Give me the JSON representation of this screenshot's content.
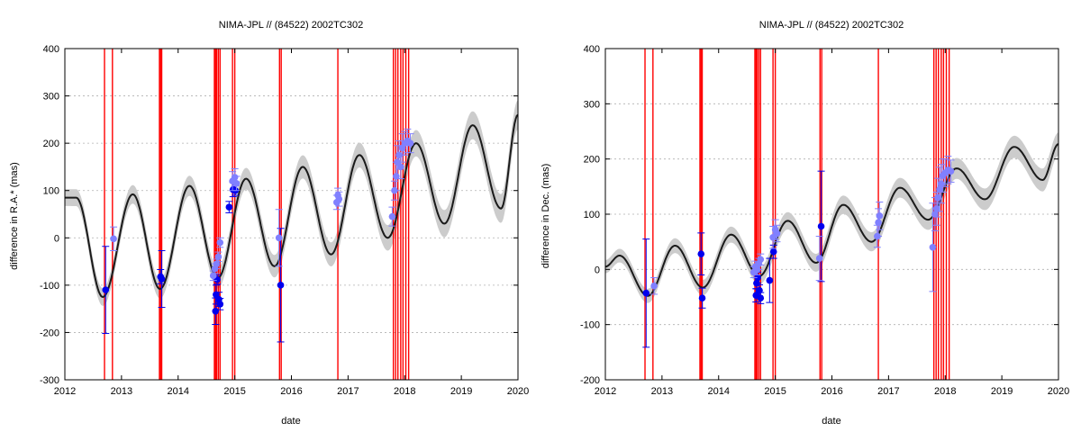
{
  "chart_data": [
    {
      "type": "line",
      "title": "NIMA-JPL // (84522) 2002TC302",
      "xlabel": "date",
      "ylabel": "difference in R.A.* (mas)",
      "xlim": [
        2012,
        2020
      ],
      "ylim": [
        -300,
        400
      ],
      "xticks": [
        2012,
        2013,
        2014,
        2015,
        2016,
        2017,
        2018,
        2019,
        2020
      ],
      "yticks": [
        -300,
        -200,
        -100,
        0,
        100,
        200,
        300,
        400
      ],
      "grid": "horizontal-dotted",
      "colors": {
        "curve": "#1a1a1a",
        "band": "#cccccc",
        "lines": "#ff0000",
        "points_dark": "#0000ee",
        "points_light": "#8080ff"
      },
      "model": {
        "amplitude": 105,
        "period": 1.0,
        "trend": [
          [
            2012,
            -10
          ],
          [
            2015,
            15
          ],
          [
            2018,
            100
          ],
          [
            2020,
            160
          ]
        ],
        "band": 22,
        "extremes": [
          [
            2012.2,
            85
          ],
          [
            2012.67,
            -125
          ],
          [
            2013.2,
            92
          ],
          [
            2013.68,
            -108
          ],
          [
            2014.2,
            110
          ],
          [
            2014.7,
            -85
          ],
          [
            2015.2,
            125
          ],
          [
            2015.7,
            -60
          ],
          [
            2016.2,
            150
          ],
          [
            2016.7,
            -35
          ],
          [
            2017.2,
            175
          ],
          [
            2017.7,
            0
          ],
          [
            2018.2,
            200
          ],
          [
            2018.7,
            30
          ],
          [
            2019.2,
            238
          ],
          [
            2019.7,
            62
          ],
          [
            2020.0,
            260
          ]
        ]
      },
      "vlines": [
        2012.7,
        2012.84,
        2013.67,
        2013.69,
        2013.71,
        2014.64,
        2014.66,
        2014.68,
        2014.71,
        2014.74,
        2014.96,
        2015.0,
        2015.79,
        2015.82,
        2016.82,
        2017.8,
        2017.84,
        2017.88,
        2017.93,
        2017.97,
        2018.02,
        2018.07
      ],
      "series": [
        {
          "points": [
            [
              2012.72,
              -110,
              92
            ],
            [
              2013.69,
              -82,
              15
            ],
            [
              2013.71,
              -87,
              60
            ],
            [
              2014.66,
              -155,
              28
            ],
            [
              2014.67,
              -120,
              20
            ],
            [
              2014.69,
              -88,
              10
            ],
            [
              2014.72,
              -130,
              15
            ],
            [
              2014.74,
              -140,
              12
            ],
            [
              2014.9,
              65,
              12
            ],
            [
              2014.97,
              102,
              15
            ],
            [
              2015.01,
              100,
              10
            ],
            [
              2015.81,
              -100,
              120
            ]
          ]
        },
        {
          "points": [
            [
              2012.86,
              -2,
              25
            ],
            [
              2014.62,
              -80,
              10
            ],
            [
              2014.65,
              -65,
              10
            ],
            [
              2014.68,
              -55,
              10
            ],
            [
              2014.71,
              -40,
              10
            ],
            [
              2014.74,
              -10,
              10
            ],
            [
              2014.96,
              120,
              20
            ],
            [
              2015.0,
              128,
              18
            ],
            [
              2015.03,
              115,
              15
            ],
            [
              2015.78,
              0,
              60
            ],
            [
              2016.8,
              75,
              15
            ],
            [
              2016.82,
              90,
              15
            ],
            [
              2016.84,
              82,
              15
            ],
            [
              2017.78,
              45,
              20
            ],
            [
              2017.82,
              100,
              20
            ],
            [
              2017.85,
              130,
              30
            ],
            [
              2017.87,
              160,
              35
            ],
            [
              2017.9,
              175,
              30
            ],
            [
              2017.93,
              150,
              25
            ],
            [
              2017.96,
              190,
              30
            ],
            [
              2018.0,
              200,
              25
            ],
            [
              2018.05,
              205,
              25
            ],
            [
              2018.1,
              200,
              20
            ]
          ]
        }
      ]
    },
    {
      "type": "line",
      "title": "NIMA-JPL // (84522) 2002TC302",
      "xlabel": "date",
      "ylabel": "difference in Dec. (mas)",
      "xlim": [
        2012,
        2020
      ],
      "ylim": [
        -200,
        400
      ],
      "xticks": [
        2012,
        2013,
        2014,
        2015,
        2016,
        2017,
        2018,
        2019,
        2020
      ],
      "yticks": [
        -200,
        -100,
        0,
        100,
        200,
        300,
        400
      ],
      "grid": "horizontal-dotted",
      "colors": {
        "curve": "#1a1a1a",
        "band": "#cccccc",
        "lines": "#ff0000",
        "points_dark": "#0000ee",
        "points_light": "#8080ff"
      },
      "model": {
        "amplitude": 40,
        "period": 1.0,
        "trend": [
          [
            2012,
            -10
          ],
          [
            2015,
            40
          ],
          [
            2018,
            150
          ],
          [
            2020,
            190
          ]
        ],
        "band": 15,
        "extremes": [
          [
            2012,
            5
          ],
          [
            2012.25,
            25
          ],
          [
            2012.75,
            -48
          ],
          [
            2013.23,
            43
          ],
          [
            2013.72,
            -33
          ],
          [
            2014.22,
            63
          ],
          [
            2014.72,
            -12
          ],
          [
            2015.22,
            88
          ],
          [
            2015.72,
            12
          ],
          [
            2016.2,
            117
          ],
          [
            2016.7,
            50
          ],
          [
            2017.2,
            148
          ],
          [
            2017.7,
            90
          ],
          [
            2018.2,
            183
          ],
          [
            2018.7,
            127
          ],
          [
            2019.22,
            222
          ],
          [
            2019.72,
            162
          ],
          [
            2020.0,
            227
          ]
        ]
      },
      "vlines": [
        2012.7,
        2012.84,
        2013.67,
        2013.69,
        2013.71,
        2014.64,
        2014.66,
        2014.68,
        2014.71,
        2014.74,
        2014.96,
        2015.0,
        2015.79,
        2015.82,
        2016.82,
        2017.8,
        2017.84,
        2017.88,
        2017.93,
        2017.97,
        2018.02,
        2018.07
      ],
      "series": [
        {
          "points": [
            [
              2012.72,
              -43,
              98
            ],
            [
              2013.69,
              28,
              38
            ],
            [
              2013.71,
              -52,
              18
            ],
            [
              2014.66,
              -47,
              12
            ],
            [
              2014.67,
              -25,
              10
            ],
            [
              2014.69,
              -15,
              10
            ],
            [
              2014.72,
              -38,
              10
            ],
            [
              2014.74,
              -52,
              10
            ],
            [
              2014.9,
              -20,
              40
            ],
            [
              2014.97,
              32,
              12
            ],
            [
              2015.81,
              78,
              100
            ]
          ]
        },
        {
          "points": [
            [
              2012.86,
              -30,
              15
            ],
            [
              2014.62,
              -5,
              10
            ],
            [
              2014.65,
              5,
              10
            ],
            [
              2014.68,
              0,
              10
            ],
            [
              2014.71,
              10,
              10
            ],
            [
              2014.74,
              18,
              10
            ],
            [
              2014.96,
              58,
              20
            ],
            [
              2015.0,
              72,
              18
            ],
            [
              2015.03,
              65,
              15
            ],
            [
              2015.78,
              20,
              40
            ],
            [
              2016.8,
              60,
              20
            ],
            [
              2016.82,
              85,
              25
            ],
            [
              2016.84,
              97,
              25
            ],
            [
              2017.78,
              40,
              80
            ],
            [
              2017.82,
              100,
              30
            ],
            [
              2017.85,
              110,
              30
            ],
            [
              2017.87,
              130,
              35
            ],
            [
              2017.9,
              145,
              40
            ],
            [
              2017.93,
              155,
              35
            ],
            [
              2017.96,
              170,
              30
            ],
            [
              2018.0,
              175,
              25
            ],
            [
              2018.05,
              180,
              25
            ],
            [
              2018.1,
              178,
              20
            ]
          ]
        }
      ]
    }
  ]
}
